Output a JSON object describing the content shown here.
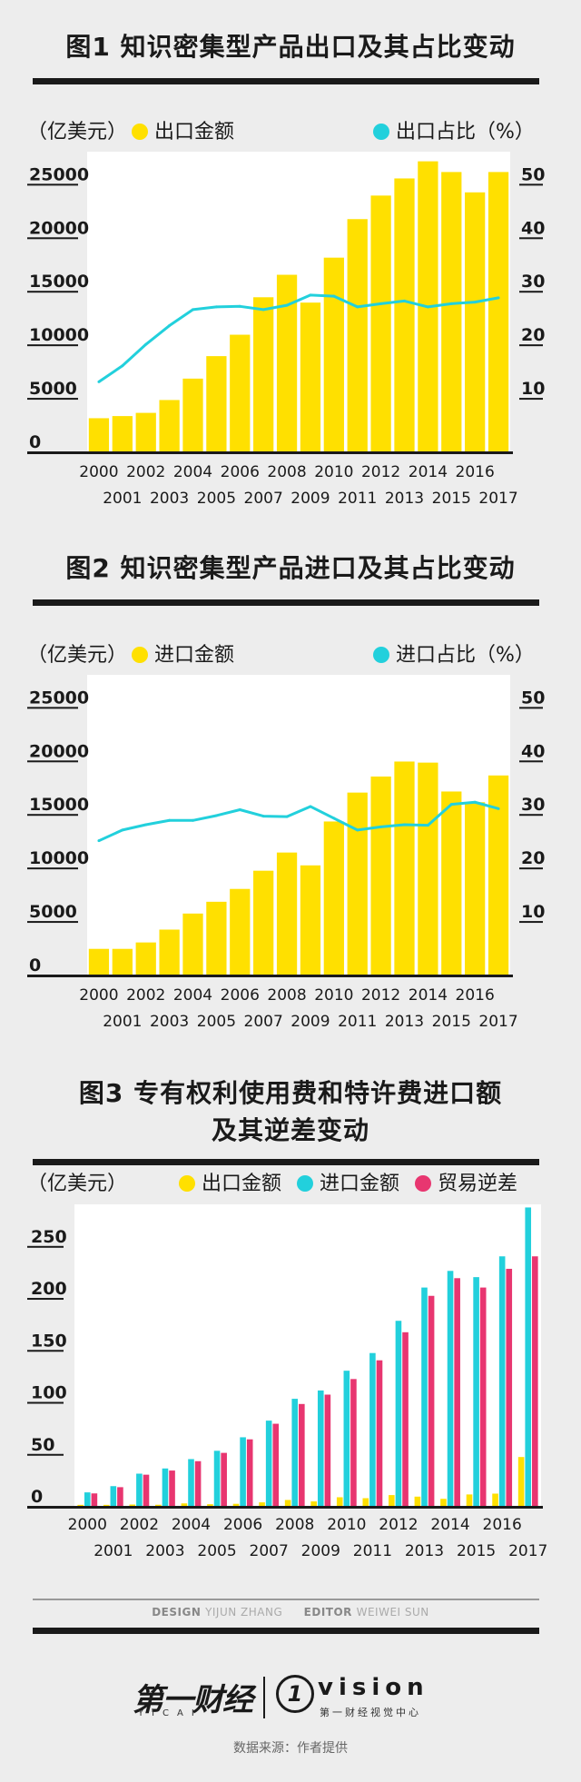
{
  "branding": {
    "design_label": "DESIGN",
    "designer": "YIJUN ZHANG",
    "editor_label": "EDITOR",
    "editor": "WEIWEI SUN",
    "logo_left": "第一财经",
    "logo_left_sub": "YICAI",
    "logo_right_mark": "1",
    "logo_right": "vision",
    "logo_right_sub": "第一财经视觉中心",
    "source": "数据来源：作者提供"
  },
  "colors": {
    "yellow": "#FFE000",
    "cyan": "#22D0DC",
    "pink": "#E83670",
    "dark": "#1a1a1a"
  },
  "chart_data": [
    {
      "type": "bar",
      "title": "图1 知识密集型产品出口及其占比变动",
      "left_unit": "（亿美元）",
      "bar_legend": "出口金额",
      "line_legend": "出口占比（%）",
      "categories": [
        "2000",
        "2001",
        "2002",
        "2003",
        "2004",
        "2005",
        "2006",
        "2007",
        "2008",
        "2009",
        "2010",
        "2011",
        "2012",
        "2013",
        "2014",
        "2015",
        "2016",
        "2017"
      ],
      "series": [
        {
          "name": "出口金额",
          "type": "bar",
          "axis": "left",
          "values": [
            3100,
            3300,
            3600,
            4800,
            6800,
            8900,
            10900,
            14400,
            16500,
            13900,
            18100,
            21700,
            23900,
            25500,
            27100,
            26100,
            24200,
            26100
          ]
        },
        {
          "name": "出口占比（%）",
          "type": "line",
          "axis": "right",
          "values": [
            13,
            16,
            20,
            23.5,
            26.5,
            27,
            27.1,
            26.5,
            27.3,
            29.2,
            29,
            27,
            27.6,
            28.1,
            27,
            27.6,
            27.9,
            28.7
          ]
        }
      ],
      "left_ylim": [
        0,
        28000
      ],
      "left_ticks": [
        0,
        5000,
        10000,
        15000,
        20000,
        25000
      ],
      "right_ylim": [
        0,
        56
      ],
      "right_ticks": [
        10,
        20,
        30,
        40,
        50
      ],
      "x_labels_top": [
        "2000",
        "2002",
        "2004",
        "2006",
        "2008",
        "2010",
        "2012",
        "2014",
        "2016"
      ],
      "x_labels_bottom": [
        "2001",
        "2003",
        "2005",
        "2007",
        "2009",
        "2011",
        "2013",
        "2015",
        "2017"
      ],
      "grid": false
    },
    {
      "type": "bar",
      "title": "图2 知识密集型产品进口及其占比变动",
      "left_unit": "（亿美元）",
      "bar_legend": "进口金额",
      "line_legend": "进口占比（%）",
      "categories": [
        "2000",
        "2001",
        "2002",
        "2003",
        "2004",
        "2005",
        "2006",
        "2007",
        "2008",
        "2009",
        "2010",
        "2011",
        "2012",
        "2013",
        "2014",
        "2015",
        "2016",
        "2017"
      ],
      "series": [
        {
          "name": "进口金额",
          "type": "bar",
          "axis": "left",
          "values": [
            2400,
            2400,
            3000,
            4200,
            5700,
            6800,
            8000,
            9700,
            11400,
            10200,
            14300,
            17000,
            18500,
            19900,
            19800,
            17100,
            16100,
            18600
          ]
        },
        {
          "name": "进口占比（%）",
          "type": "line",
          "axis": "right",
          "values": [
            25,
            27,
            28,
            28.8,
            28.8,
            29.7,
            30.8,
            29.6,
            29.5,
            31.4,
            29.2,
            27,
            27.6,
            28,
            27.9,
            31.8,
            32.2,
            31
          ]
        }
      ],
      "left_ylim": [
        0,
        28000
      ],
      "left_ticks": [
        0,
        5000,
        10000,
        15000,
        20000,
        25000
      ],
      "right_ylim": [
        0,
        56
      ],
      "right_ticks": [
        10,
        20,
        30,
        40,
        50
      ],
      "x_labels_top": [
        "2000",
        "2002",
        "2004",
        "2006",
        "2008",
        "2010",
        "2012",
        "2014",
        "2016"
      ],
      "x_labels_bottom": [
        "2001",
        "2003",
        "2005",
        "2007",
        "2009",
        "2011",
        "2013",
        "2015",
        "2017"
      ],
      "grid": false
    },
    {
      "type": "bar",
      "title_line1": "图3 专有权利使用费和特许费进口额",
      "title_line2": "及其逆差变动",
      "left_unit": "（亿美元）",
      "categories": [
        "2000",
        "2001",
        "2002",
        "2003",
        "2004",
        "2005",
        "2006",
        "2007",
        "2008",
        "2009",
        "2010",
        "2011",
        "2012",
        "2013",
        "2014",
        "2015",
        "2016",
        "2017"
      ],
      "series": [
        {
          "name": "出口金额",
          "values": [
            1,
            1,
            1.3,
            1.1,
            2.4,
            1.6,
            2,
            3.4,
            5.7,
            4.3,
            8.3,
            7.4,
            10.4,
            8.9,
            6.8,
            11,
            11.8,
            47
          ]
        },
        {
          "name": "进口金额",
          "values": [
            13,
            19,
            31,
            36,
            45,
            53,
            66,
            82,
            103,
            111,
            130,
            147,
            178,
            210,
            226,
            220,
            240,
            287
          ]
        },
        {
          "name": "贸易逆差",
          "values": [
            12,
            18,
            30,
            34,
            43,
            51,
            64,
            79,
            98,
            107,
            122,
            140,
            167,
            202,
            219,
            210,
            228,
            240
          ]
        }
      ],
      "ylim": [
        0,
        290
      ],
      "ticks": [
        0,
        50,
        100,
        150,
        200,
        250
      ],
      "x_labels_top": [
        "2000",
        "2002",
        "2004",
        "2006",
        "2008",
        "2010",
        "2012",
        "2014",
        "2016"
      ],
      "x_labels_bottom": [
        "2001",
        "2003",
        "2005",
        "2007",
        "2009",
        "2011",
        "2013",
        "2015",
        "2017"
      ],
      "grid": false
    }
  ]
}
